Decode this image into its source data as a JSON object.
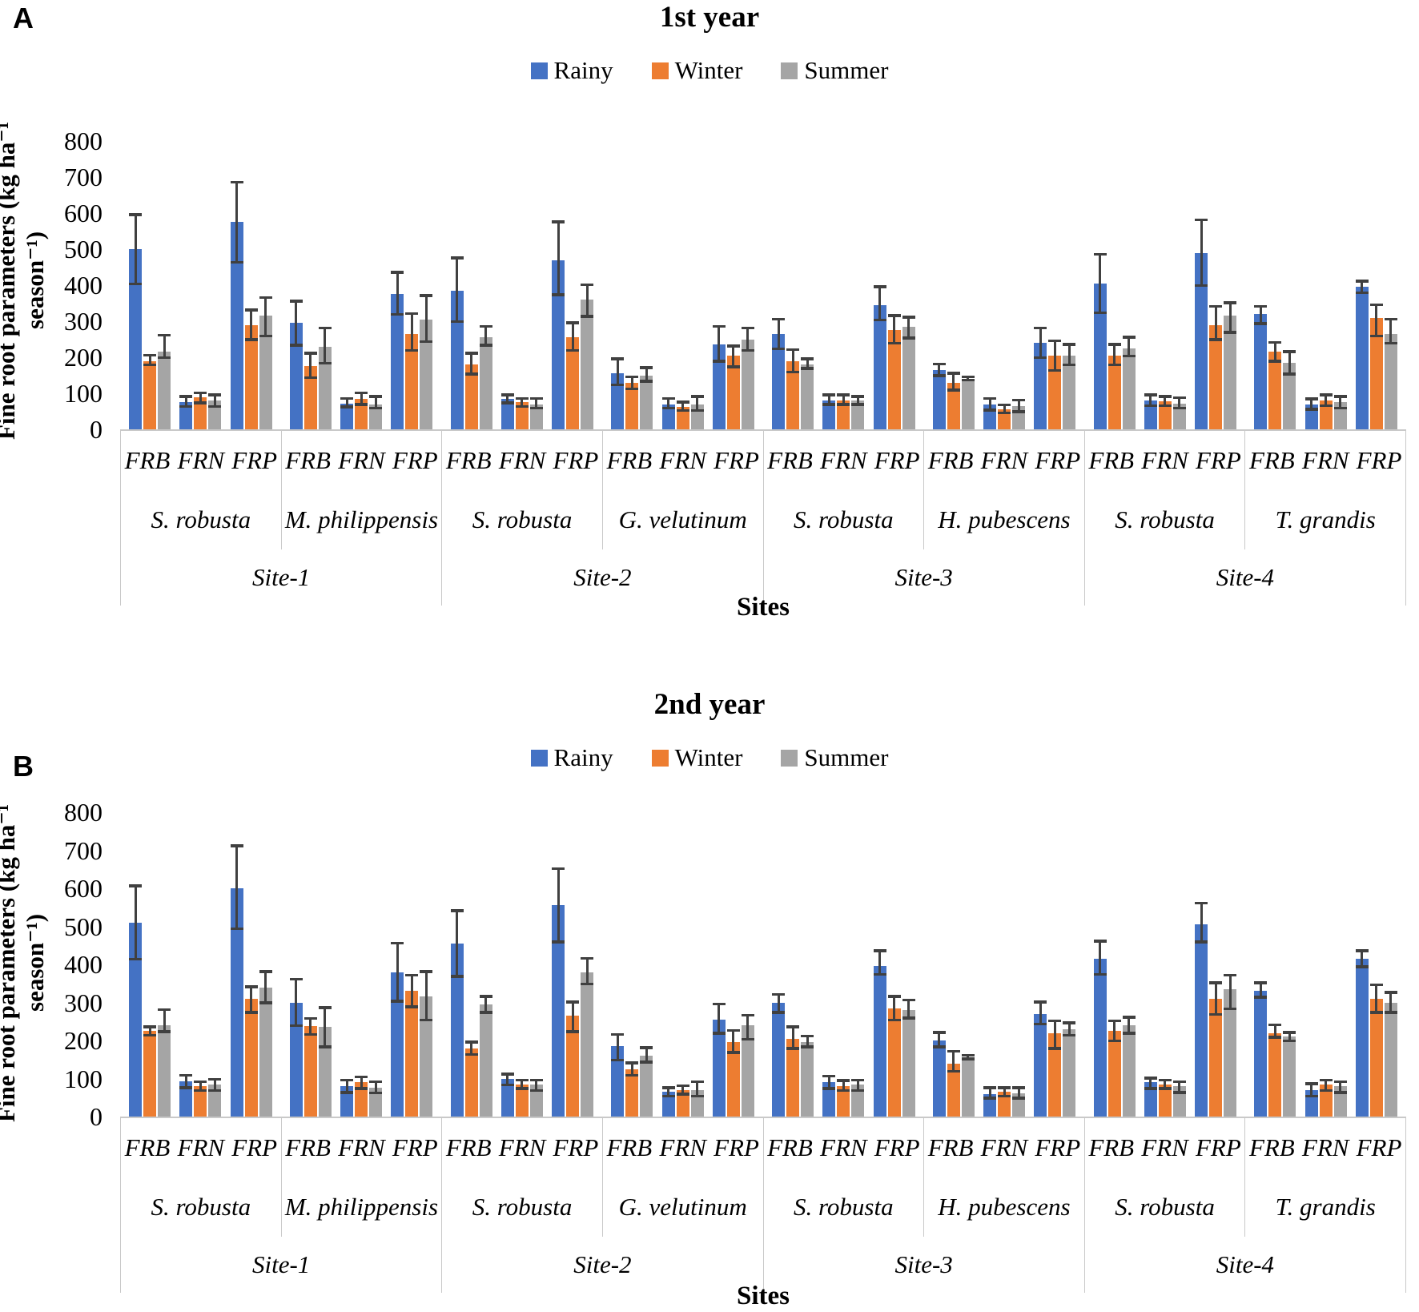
{
  "colors": {
    "rainy": "#4472C4",
    "winter": "#ED7D31",
    "summer": "#A5A5A5",
    "error_bar": "#404040"
  },
  "chart_data": [
    {
      "type": "bar",
      "panel_letter": "A",
      "title": "1st year",
      "xlabel": "Sites",
      "ylabel": "Fine root parameters (kg ha⁻¹ season⁻¹)",
      "ylim": [
        0,
        800
      ],
      "ytick_step": 100,
      "grid": false,
      "legend_position": "top-center",
      "error_bars": true,
      "series": [
        {
          "name": "Rainy",
          "color": "#4472C4"
        },
        {
          "name": "Winter",
          "color": "#ED7D31"
        },
        {
          "name": "Summer",
          "color": "#A5A5A5"
        }
      ],
      "param_labels": [
        "FRB",
        "FRN",
        "FRP"
      ],
      "bar_note": "each bar is [value, error_low, error_high] in series order Rainy, Winter, Summer",
      "groups": [
        {
          "site": "Site-1",
          "species": "S. robusta",
          "bars": {
            "FRB": [
              [
                500,
                400,
                600
              ],
              [
                190,
                175,
                210
              ],
              [
                215,
                195,
                265
              ]
            ],
            "FRN": [
              [
                75,
                60,
                95
              ],
              [
                90,
                70,
                105
              ],
              [
                80,
                60,
                100
              ]
            ],
            "FRP": [
              [
                575,
                460,
                690
              ],
              [
                290,
                245,
                335
              ],
              [
                315,
                255,
                370
              ]
            ]
          }
        },
        {
          "site": "Site-1",
          "species": "M. philippensis",
          "bars": {
            "FRB": [
              [
                295,
                230,
                360
              ],
              [
                175,
                140,
                215
              ],
              [
                230,
                180,
                285
              ]
            ],
            "FRN": [
              [
                72,
                58,
                90
              ],
              [
                85,
                65,
                105
              ],
              [
                70,
                55,
                95
              ]
            ],
            "FRP": [
              [
                375,
                315,
                440
              ],
              [
                265,
                215,
                325
              ],
              [
                305,
                240,
                375
              ]
            ]
          }
        },
        {
          "site": "Site-2",
          "species": "S. robusta",
          "bars": {
            "FRB": [
              [
                385,
                295,
                480
              ],
              [
                180,
                150,
                215
              ],
              [
                255,
                230,
                290
              ]
            ],
            "FRN": [
              [
                85,
                70,
                100
              ],
              [
                75,
                60,
                90
              ],
              [
                70,
                55,
                90
              ]
            ],
            "FRP": [
              [
                470,
                370,
                580
              ],
              [
                255,
                215,
                300
              ],
              [
                360,
                310,
                405
              ]
            ]
          }
        },
        {
          "site": "Site-2",
          "species": "G. velutinum",
          "bars": {
            "FRB": [
              [
                155,
                120,
                200
              ],
              [
                128,
                108,
                150
              ],
              [
                150,
                130,
                175
              ]
            ],
            "FRN": [
              [
                70,
                55,
                90
              ],
              [
                62,
                48,
                80
              ],
              [
                68,
                48,
                95
              ]
            ],
            "FRP": [
              [
                235,
                185,
                290
              ],
              [
                205,
                170,
                235
              ],
              [
                250,
                215,
                285
              ]
            ]
          }
        },
        {
          "site": "Site-3",
          "species": "S. robusta",
          "bars": {
            "FRB": [
              [
                265,
                220,
                310
              ],
              [
                190,
                155,
                225
              ],
              [
                180,
                165,
                200
              ]
            ],
            "FRN": [
              [
                80,
                65,
                100
              ],
              [
                80,
                65,
                100
              ],
              [
                80,
                65,
                95
              ]
            ],
            "FRP": [
              [
                345,
                300,
                400
              ],
              [
                275,
                235,
                320
              ],
              [
                285,
                250,
                315
              ]
            ]
          }
        },
        {
          "site": "Site-3",
          "species": "H. pubescens",
          "bars": {
            "FRB": [
              [
                165,
                145,
                185
              ],
              [
                130,
                105,
                160
              ],
              [
                140,
                133,
                150
              ]
            ],
            "FRN": [
              [
                70,
                50,
                90
              ],
              [
                55,
                42,
                72
              ],
              [
                65,
                45,
                85
              ]
            ],
            "FRP": [
              [
                240,
                195,
                285
              ],
              [
                205,
                160,
                250
              ],
              [
                205,
                175,
                240
              ]
            ]
          }
        },
        {
          "site": "Site-4",
          "species": "S. robusta",
          "bars": {
            "FRB": [
              [
                405,
                320,
                490
              ],
              [
                205,
                175,
                240
              ],
              [
                225,
                200,
                260
              ]
            ],
            "FRN": [
              [
                80,
                62,
                100
              ],
              [
                78,
                62,
                95
              ],
              [
                72,
                55,
                92
              ]
            ],
            "FRP": [
              [
                490,
                395,
                585
              ],
              [
                290,
                245,
                345
              ],
              [
                315,
                265,
                355
              ]
            ]
          }
        },
        {
          "site": "Site-4",
          "species": "T. grandis",
          "bars": {
            "FRB": [
              [
                320,
                290,
                345
              ],
              [
                215,
                185,
                245
              ],
              [
                185,
                150,
                220
              ]
            ],
            "FRN": [
              [
                68,
                52,
                88
              ],
              [
                80,
                62,
                100
              ],
              [
                75,
                55,
                95
              ]
            ],
            "FRP": [
              [
                395,
                375,
                415
              ],
              [
                310,
                255,
                350
              ],
              [
                265,
                235,
                310
              ]
            ]
          }
        }
      ]
    },
    {
      "type": "bar",
      "panel_letter": "B",
      "title": "2nd year",
      "xlabel": "Sites",
      "ylabel": "Fine root parameters (kg ha⁻¹ season⁻¹)",
      "ylim": [
        0,
        800
      ],
      "ytick_step": 100,
      "grid": false,
      "legend_position": "top-center",
      "error_bars": true,
      "series": [
        {
          "name": "Rainy",
          "color": "#4472C4"
        },
        {
          "name": "Winter",
          "color": "#ED7D31"
        },
        {
          "name": "Summer",
          "color": "#A5A5A5"
        }
      ],
      "param_labels": [
        "FRB",
        "FRN",
        "FRP"
      ],
      "bar_note": "each bar is [value, error_low, error_high] in series order Rainy, Winter, Summer",
      "groups": [
        {
          "site": "Site-1",
          "species": "S. robusta",
          "bars": {
            "FRB": [
              [
                510,
                410,
                610
              ],
              [
                225,
                210,
                240
              ],
              [
                240,
                220,
                285
              ]
            ],
            "FRN": [
              [
                92,
                72,
                112
              ],
              [
                80,
                65,
                95
              ],
              [
                85,
                65,
                102
              ]
            ],
            "FRP": [
              [
                600,
                490,
                715
              ],
              [
                310,
                270,
                345
              ],
              [
                340,
                295,
                385
              ]
            ]
          }
        },
        {
          "site": "Site-1",
          "species": "M. philippensis",
          "bars": {
            "FRB": [
              [
                300,
                235,
                365
              ],
              [
                238,
                212,
                262
              ],
              [
                235,
                180,
                290
              ]
            ],
            "FRN": [
              [
                80,
                60,
                100
              ],
              [
                90,
                70,
                108
              ],
              [
                75,
                58,
                95
              ]
            ],
            "FRP": [
              [
                380,
                300,
                460
              ],
              [
                330,
                285,
                375
              ],
              [
                315,
                250,
                385
              ]
            ]
          }
        },
        {
          "site": "Site-2",
          "species": "S. robusta",
          "bars": {
            "FRB": [
              [
                455,
                365,
                545
              ],
              [
                180,
                160,
                200
              ],
              [
                295,
                270,
                320
              ]
            ],
            "FRN": [
              [
                98,
                80,
                115
              ],
              [
                85,
                70,
                100
              ],
              [
                85,
                65,
                100
              ]
            ],
            "FRP": [
              [
                555,
                455,
                655
              ],
              [
                265,
                220,
                305
              ],
              [
                380,
                345,
                420
              ]
            ]
          }
        },
        {
          "site": "Site-2",
          "species": "G. velutinum",
          "bars": {
            "FRB": [
              [
                185,
                145,
                220
              ],
              [
                125,
                105,
                145
              ],
              [
                160,
                140,
                185
              ]
            ],
            "FRN": [
              [
                65,
                50,
                80
              ],
              [
                70,
                55,
                85
              ],
              [
                70,
                50,
                95
              ]
            ],
            "FRP": [
              [
                255,
                215,
                300
              ],
              [
                195,
                165,
                230
              ],
              [
                240,
                200,
                270
              ]
            ]
          }
        },
        {
          "site": "Site-3",
          "species": "S. robusta",
          "bars": {
            "FRB": [
              [
                300,
                270,
                325
              ],
              [
                205,
                175,
                240
              ],
              [
                195,
                180,
                215
              ]
            ],
            "FRN": [
              [
                90,
                70,
                110
              ],
              [
                80,
                65,
                98
              ],
              [
                85,
                65,
                100
              ]
            ],
            "FRP": [
              [
                395,
                370,
                440
              ],
              [
                285,
                250,
                320
              ],
              [
                280,
                255,
                310
              ]
            ]
          }
        },
        {
          "site": "Site-3",
          "species": "H. pubescens",
          "bars": {
            "FRB": [
              [
                200,
                180,
                225
              ],
              [
                140,
                115,
                175
              ],
              [
                155,
                148,
                165
              ]
            ],
            "FRN": [
              [
                60,
                45,
                80
              ],
              [
                65,
                50,
                80
              ],
              [
                62,
                45,
                80
              ]
            ],
            "FRP": [
              [
                270,
                240,
                305
              ],
              [
                220,
                175,
                255
              ],
              [
                230,
                210,
                250
              ]
            ]
          }
        },
        {
          "site": "Site-4",
          "species": "S. robusta",
          "bars": {
            "FRB": [
              [
                415,
                370,
                465
              ],
              [
                225,
                195,
                255
              ],
              [
                240,
                215,
                265
              ]
            ],
            "FRN": [
              [
                90,
                70,
                105
              ],
              [
                85,
                70,
                100
              ],
              [
                80,
                60,
                95
              ]
            ],
            "FRP": [
              [
                505,
                455,
                565
              ],
              [
                310,
                265,
                355
              ],
              [
                335,
                280,
                375
              ]
            ]
          }
        },
        {
          "site": "Site-4",
          "species": "T. grandis",
          "bars": {
            "FRB": [
              [
                330,
                310,
                355
              ],
              [
                220,
                205,
                245
              ],
              [
                210,
                195,
                225
              ]
            ],
            "FRN": [
              [
                70,
                50,
                90
              ],
              [
                85,
                65,
                100
              ],
              [
                80,
                60,
                95
              ]
            ],
            "FRP": [
              [
                415,
                390,
                440
              ],
              [
                310,
                270,
                350
              ],
              [
                300,
                270,
                330
              ]
            ]
          }
        }
      ]
    }
  ]
}
